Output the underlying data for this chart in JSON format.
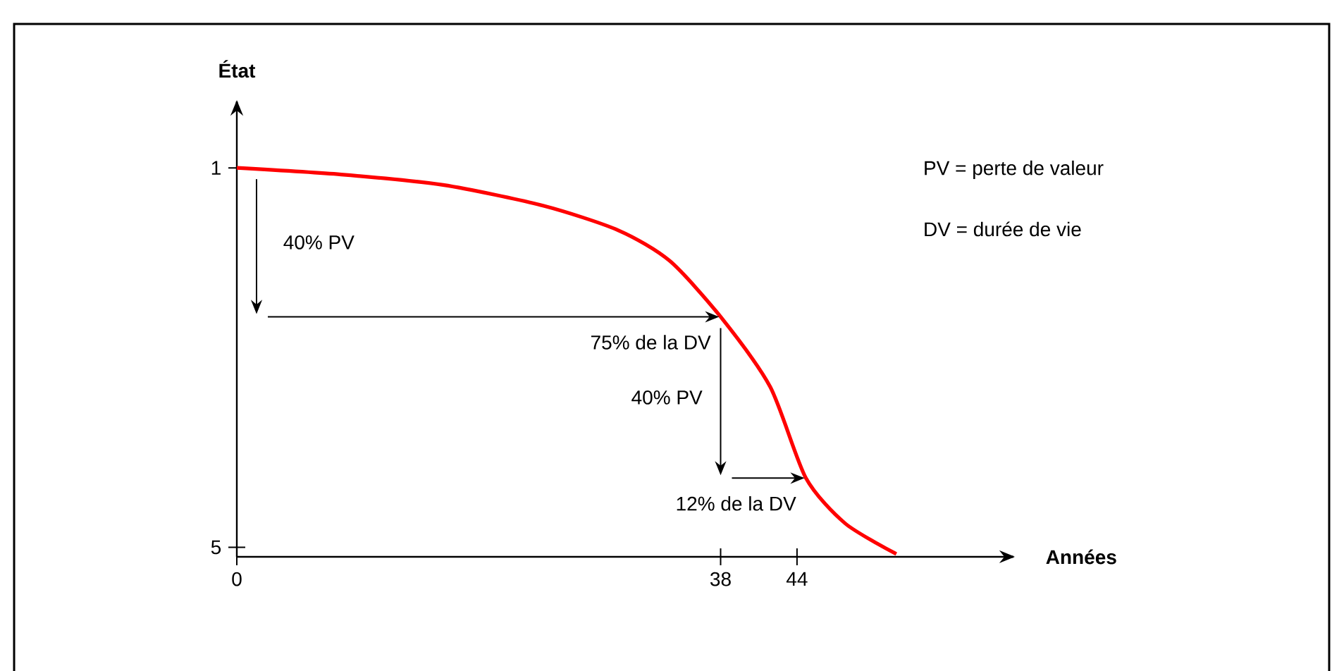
{
  "chart_data": {
    "type": "line",
    "xlabel": "Années",
    "ylabel": "État",
    "x": [
      0,
      8.2,
      16.2,
      24.1,
      30.0,
      34.0,
      38.0,
      41.9,
      44.7,
      47.8,
      51.8
    ],
    "series": [
      {
        "color": "#ff0000",
        "values": [
          1,
          1.07,
          1.18,
          1.4,
          1.66,
          1.98,
          2.57,
          3.31,
          4.27,
          4.75,
          5.07
        ]
      }
    ],
    "xlim": [
      0,
      61
    ],
    "ylim": [
      5.1,
      0.3
    ],
    "xticks": [
      0,
      38,
      44
    ],
    "yticks": [
      1,
      5
    ],
    "grid": false,
    "marker": "none",
    "line_style": "solid",
    "annotations": [
      "40% PV",
      {
        "text": "75% de la DV",
        "x": 38,
        "y": 2.57
      },
      "40% PV",
      {
        "text": "12% de la DV",
        "x": 44.7,
        "y": 4.27
      },
      "PV = perte de valeur",
      "DV = durée de vie"
    ]
  }
}
